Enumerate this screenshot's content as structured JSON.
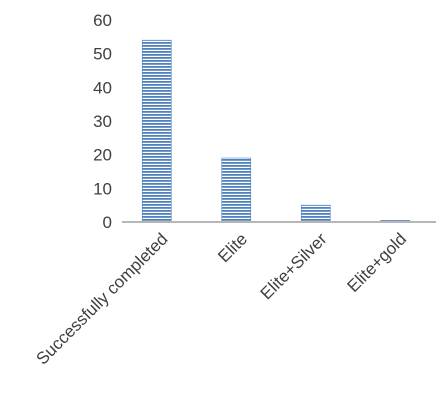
{
  "chart_data": {
    "type": "bar",
    "categories": [
      "Successfully completed",
      "Elite",
      "Elite+Silver",
      "Elite+gold"
    ],
    "values": [
      54,
      19,
      5,
      0.5
    ],
    "yticks": [
      "0",
      "10",
      "20",
      "30",
      "40",
      "50",
      "60"
    ],
    "ylim": [
      0,
      60
    ],
    "grid": false,
    "legend": "none",
    "bar_color": "#4f81bd",
    "bar_stripe_color": "#ffffff",
    "axis_color": "#b7b7b7"
  }
}
